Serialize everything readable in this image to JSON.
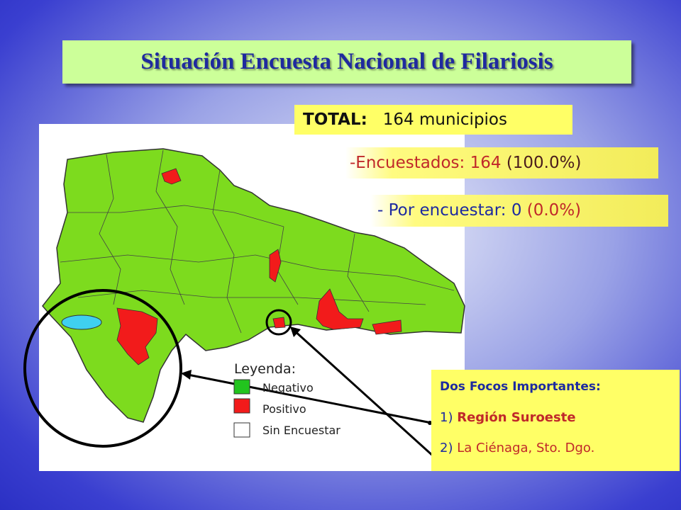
{
  "title": "Situación Encuesta Nacional de Filariosis",
  "total": {
    "label": "TOTAL:",
    "value": "164 municipios"
  },
  "surveyed": {
    "label": "-Encuestados:",
    "count": "164",
    "percent": "(100.0%)"
  },
  "pending": {
    "label": "- Por encuestar:",
    "count": "0",
    "percent": "(0.0%)"
  },
  "legend": {
    "title": "Leyenda:",
    "items": [
      "Negativo",
      "Positivo",
      "Sin Encuestar"
    ]
  },
  "foci": {
    "title": "Dos Focos Importantes:",
    "items": [
      {
        "number": "1)",
        "text": "Región Suroeste"
      },
      {
        "number": "2)",
        "text": "La Ciénaga, Sto. Dgo."
      }
    ]
  }
}
